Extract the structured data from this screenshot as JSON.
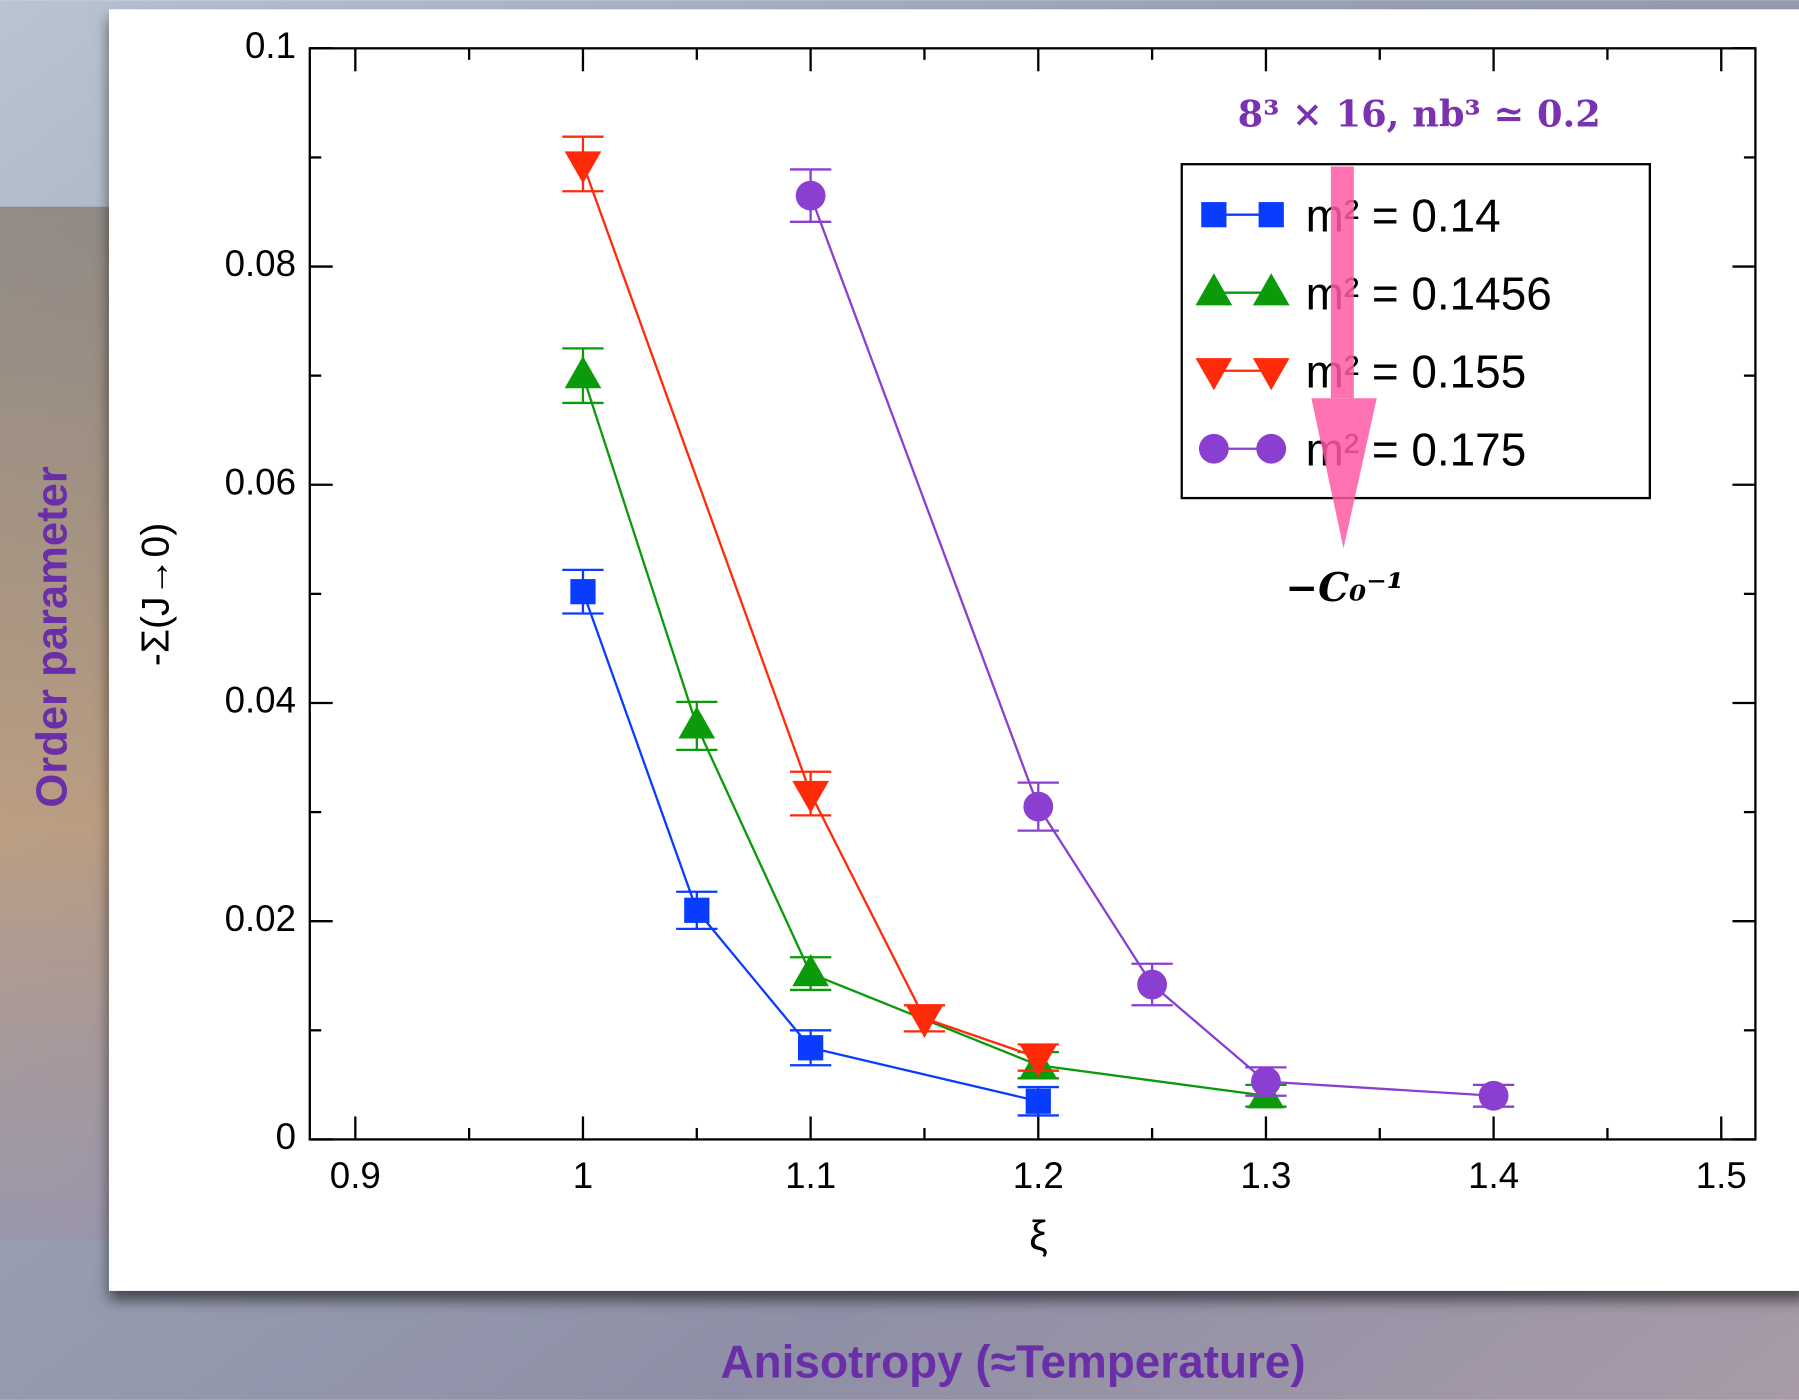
{
  "chart_data": {
    "type": "line",
    "outer_ylabel": "Order parameter",
    "outer_xlabel": "Anisotropy (≈Temperature)",
    "ylabel": "-Σ(J→0)",
    "xlabel": "ξ",
    "annotation": "8³ × 16, nb³ ≃ 0.2",
    "arrow_label": "−C₀⁻¹",
    "xlim": [
      0.88,
      1.515
    ],
    "ylim": [
      0,
      0.1
    ],
    "xticks": [
      0.9,
      1,
      1.1,
      1.2,
      1.3,
      1.4,
      1.5
    ],
    "yticks": [
      0,
      0.02,
      0.04,
      0.06,
      0.08,
      0.1
    ],
    "xticks_minor": [
      0.95,
      1.05,
      1.15,
      1.25,
      1.35,
      1.45
    ],
    "yticks_minor": [
      0.01,
      0.03,
      0.05,
      0.07,
      0.09
    ],
    "legend": "upper right",
    "series": [
      {
        "name": "m² = 0.14",
        "color": "#0a3cff",
        "marker": "square",
        "x": [
          1,
          1.05,
          1.1,
          1.2
        ],
        "values": [
          0.0502,
          0.021,
          0.0084,
          0.0035
        ],
        "errors": [
          0.002,
          0.0017,
          0.0016,
          0.0013
        ]
      },
      {
        "name": "m² = 0.1456",
        "color": "#0a9a0a",
        "marker": "triangle-up",
        "x": [
          1,
          1.05,
          1.1,
          1.2,
          1.3
        ],
        "values": [
          0.07,
          0.0379,
          0.0152,
          0.0068,
          0.004
        ],
        "errors": [
          0.0025,
          0.0022,
          0.0015,
          0.0012,
          0.001
        ]
      },
      {
        "name": "m² = 0.155",
        "color": "#ff2a0a",
        "marker": "triangle-down",
        "x": [
          1,
          1.1,
          1.15,
          1.2
        ],
        "values": [
          0.0894,
          0.0317,
          0.0111,
          0.0075
        ],
        "errors": [
          0.0025,
          0.002,
          0.0012,
          0.0012
        ]
      },
      {
        "name": "m² = 0.175",
        "color": "#8a3fd0",
        "marker": "circle",
        "x": [
          1.1,
          1.2,
          1.25,
          1.3,
          1.4
        ],
        "values": [
          0.0865,
          0.0305,
          0.0142,
          0.0053,
          0.004
        ],
        "errors": [
          0.0024,
          0.0022,
          0.0019,
          0.0013,
          0.001
        ]
      }
    ]
  }
}
